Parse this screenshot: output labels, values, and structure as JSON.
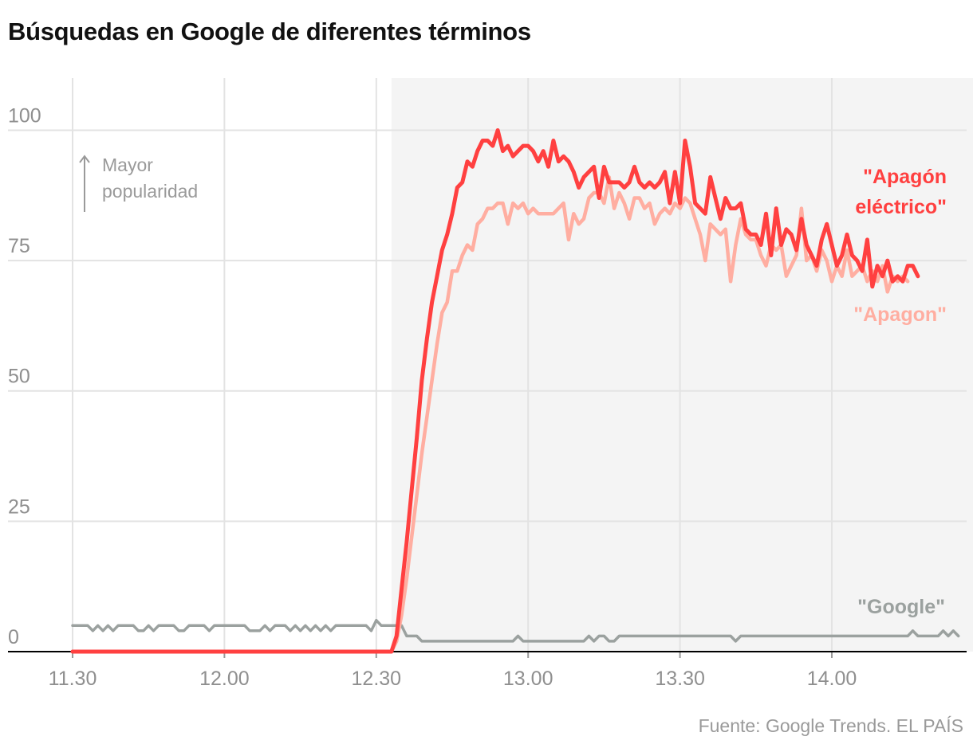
{
  "title": "Búsquedas en Google de diferentes términos",
  "source": "Fuente: Google Trends. EL PAÍS",
  "annotation": {
    "arrow": "↑",
    "line1": "Mayor",
    "line2": "popularidad"
  },
  "colors": {
    "apagon_electrico": "#ff4040",
    "apagon": "#ffaea1",
    "google": "#9ba19f",
    "shade": "#f4f4f4",
    "grid": "#e3e3e3",
    "axis": "#000000"
  },
  "chart_data": {
    "type": "line",
    "title": "Búsquedas en Google de diferentes términos",
    "x_unit": "hora (hh.mm)",
    "xlim": [
      "11:30",
      "14:46"
    ],
    "ylim": [
      0,
      110
    ],
    "x_ticks": [
      "11.30",
      "12.00",
      "12.30",
      "13.00",
      "13.30",
      "14.00"
    ],
    "y_ticks": [
      0,
      25,
      50,
      75,
      100
    ],
    "grid": true,
    "highlight_region": {
      "from": "12:33",
      "to": "14:46"
    },
    "series": [
      {
        "name": "\"Google\"",
        "label_lines": [
          "\"Google\""
        ],
        "color": "#9ba19f",
        "points": [
          [
            "11:30",
            5
          ],
          [
            "11:33",
            5
          ],
          [
            "11:34",
            4
          ],
          [
            "11:35",
            5
          ],
          [
            "11:36",
            4
          ],
          [
            "11:37",
            5
          ],
          [
            "11:38",
            4
          ],
          [
            "11:39",
            5
          ],
          [
            "11:42",
            5
          ],
          [
            "11:43",
            4
          ],
          [
            "11:44",
            4
          ],
          [
            "11:45",
            5
          ],
          [
            "11:46",
            4
          ],
          [
            "11:47",
            5
          ],
          [
            "11:50",
            5
          ],
          [
            "11:51",
            4
          ],
          [
            "11:52",
            4
          ],
          [
            "11:53",
            5
          ],
          [
            "11:56",
            5
          ],
          [
            "11:57",
            4
          ],
          [
            "11:58",
            5
          ],
          [
            "12:04",
            5
          ],
          [
            "12:05",
            4
          ],
          [
            "12:07",
            4
          ],
          [
            "12:08",
            5
          ],
          [
            "12:09",
            4
          ],
          [
            "12:10",
            5
          ],
          [
            "12:12",
            5
          ],
          [
            "12:13",
            4
          ],
          [
            "12:14",
            5
          ],
          [
            "12:15",
            4
          ],
          [
            "12:16",
            5
          ],
          [
            "12:17",
            4
          ],
          [
            "12:18",
            5
          ],
          [
            "12:19",
            4
          ],
          [
            "12:20",
            5
          ],
          [
            "12:21",
            4
          ],
          [
            "12:22",
            5
          ],
          [
            "12:28",
            5
          ],
          [
            "12:29",
            4
          ],
          [
            "12:30",
            6
          ],
          [
            "12:31",
            5
          ],
          [
            "12:35",
            5
          ],
          [
            "12:36",
            3
          ],
          [
            "12:38",
            3
          ],
          [
            "12:39",
            2
          ],
          [
            "12:57",
            2
          ],
          [
            "12:58",
            3
          ],
          [
            "12:59",
            2
          ],
          [
            "13:11",
            2
          ],
          [
            "13:12",
            3
          ],
          [
            "13:13",
            2
          ],
          [
            "13:14",
            3
          ],
          [
            "13:15",
            3
          ],
          [
            "13:16",
            2
          ],
          [
            "13:17",
            2
          ],
          [
            "13:18",
            3
          ],
          [
            "13:40",
            3
          ],
          [
            "13:41",
            2
          ],
          [
            "13:42",
            3
          ],
          [
            "14:15",
            3
          ],
          [
            "14:16",
            4
          ],
          [
            "14:17",
            3
          ],
          [
            "14:21",
            3
          ],
          [
            "14:22",
            4
          ],
          [
            "14:23",
            3
          ],
          [
            "14:24",
            4
          ],
          [
            "14:25",
            3
          ]
        ]
      },
      {
        "name": "\"Apagon\"",
        "label_lines": [
          "\"Apagon\""
        ],
        "color": "#ffaea1",
        "points": [
          [
            "11:30",
            0
          ],
          [
            "12:33",
            0
          ],
          [
            "12:34",
            2
          ],
          [
            "12:35",
            7
          ],
          [
            "12:36",
            14
          ],
          [
            "12:37",
            22
          ],
          [
            "12:38",
            30
          ],
          [
            "12:39",
            38
          ],
          [
            "12:40",
            45
          ],
          [
            "12:41",
            52
          ],
          [
            "12:42",
            59
          ],
          [
            "12:43",
            65
          ],
          [
            "12:44",
            67
          ],
          [
            "12:45",
            73
          ],
          [
            "12:46",
            73
          ],
          [
            "12:47",
            76
          ],
          [
            "12:48",
            78
          ],
          [
            "12:49",
            77
          ],
          [
            "12:50",
            82
          ],
          [
            "12:51",
            83
          ],
          [
            "12:52",
            85
          ],
          [
            "12:53",
            85
          ],
          [
            "12:54",
            86
          ],
          [
            "12:55",
            86
          ],
          [
            "12:56",
            82
          ],
          [
            "12:57",
            86
          ],
          [
            "12:58",
            85
          ],
          [
            "12:59",
            86
          ],
          [
            "13:00",
            84
          ],
          [
            "13:01",
            85
          ],
          [
            "13:02",
            84
          ],
          [
            "13:03",
            84
          ],
          [
            "13:04",
            84
          ],
          [
            "13:05",
            84
          ],
          [
            "13:06",
            85
          ],
          [
            "13:07",
            86
          ],
          [
            "13:08",
            79
          ],
          [
            "13:09",
            84
          ],
          [
            "13:10",
            82
          ],
          [
            "13:11",
            83
          ],
          [
            "13:12",
            87
          ],
          [
            "13:13",
            88
          ],
          [
            "13:14",
            88
          ],
          [
            "13:15",
            86
          ],
          [
            "13:16",
            91
          ],
          [
            "13:17",
            85
          ],
          [
            "13:18",
            88
          ],
          [
            "13:19",
            86
          ],
          [
            "13:20",
            83
          ],
          [
            "13:21",
            87
          ],
          [
            "13:22",
            87
          ],
          [
            "13:23",
            85
          ],
          [
            "13:24",
            86
          ],
          [
            "13:25",
            82
          ],
          [
            "13:26",
            84
          ],
          [
            "13:27",
            85
          ],
          [
            "13:28",
            84
          ],
          [
            "13:29",
            86
          ],
          [
            "13:30",
            85
          ],
          [
            "13:31",
            87
          ],
          [
            "13:32",
            86
          ],
          [
            "13:33",
            83
          ],
          [
            "13:34",
            80
          ],
          [
            "13:35",
            75
          ],
          [
            "13:36",
            82
          ],
          [
            "13:37",
            81
          ],
          [
            "13:38",
            80
          ],
          [
            "13:39",
            81
          ],
          [
            "13:40",
            71
          ],
          [
            "13:41",
            78
          ],
          [
            "13:42",
            83
          ],
          [
            "13:43",
            80
          ],
          [
            "13:44",
            79
          ],
          [
            "13:45",
            79
          ],
          [
            "13:46",
            76
          ],
          [
            "13:47",
            74
          ],
          [
            "13:48",
            78
          ],
          [
            "13:49",
            77
          ],
          [
            "13:50",
            78
          ],
          [
            "13:51",
            72
          ],
          [
            "13:52",
            74
          ],
          [
            "13:53",
            76
          ],
          [
            "13:54",
            85
          ],
          [
            "13:55",
            75
          ],
          [
            "13:56",
            76
          ],
          [
            "13:57",
            73
          ],
          [
            "13:58",
            77
          ],
          [
            "13:59",
            75
          ],
          [
            "14:00",
            71
          ],
          [
            "14:01",
            74
          ],
          [
            "14:02",
            72
          ],
          [
            "14:03",
            77
          ],
          [
            "14:04",
            72
          ],
          [
            "14:05",
            73
          ],
          [
            "14:06",
            74
          ],
          [
            "14:07",
            71
          ],
          [
            "14:08",
            73
          ],
          [
            "14:09",
            71
          ],
          [
            "14:10",
            74
          ],
          [
            "14:11",
            69
          ],
          [
            "14:12",
            72
          ],
          [
            "14:13",
            71
          ],
          [
            "14:14",
            72
          ],
          [
            "14:15",
            71
          ]
        ]
      },
      {
        "name": "\"Apagón eléctrico\"",
        "label_lines": [
          "\"Apagón",
          "eléctrico\""
        ],
        "color": "#ff4040",
        "points": [
          [
            "11:30",
            0
          ],
          [
            "12:33",
            0
          ],
          [
            "12:34",
            3
          ],
          [
            "12:35",
            12
          ],
          [
            "12:36",
            21
          ],
          [
            "12:37",
            31
          ],
          [
            "12:38",
            41
          ],
          [
            "12:39",
            52
          ],
          [
            "12:40",
            60
          ],
          [
            "12:41",
            67
          ],
          [
            "12:42",
            72
          ],
          [
            "12:43",
            77
          ],
          [
            "12:44",
            80
          ],
          [
            "12:45",
            84
          ],
          [
            "12:46",
            89
          ],
          [
            "12:47",
            90
          ],
          [
            "12:48",
            94
          ],
          [
            "12:49",
            93
          ],
          [
            "12:50",
            96
          ],
          [
            "12:51",
            98
          ],
          [
            "12:52",
            98
          ],
          [
            "12:53",
            97
          ],
          [
            "12:54",
            100
          ],
          [
            "12:55",
            96
          ],
          [
            "12:56",
            97
          ],
          [
            "12:57",
            95
          ],
          [
            "12:58",
            96
          ],
          [
            "12:59",
            97
          ],
          [
            "13:00",
            97
          ],
          [
            "13:01",
            96
          ],
          [
            "13:02",
            94
          ],
          [
            "13:03",
            96
          ],
          [
            "13:04",
            93
          ],
          [
            "13:05",
            98
          ],
          [
            "13:06",
            94
          ],
          [
            "13:07",
            95
          ],
          [
            "13:08",
            94
          ],
          [
            "13:09",
            92
          ],
          [
            "13:10",
            89
          ],
          [
            "13:11",
            91
          ],
          [
            "13:12",
            92
          ],
          [
            "13:13",
            93
          ],
          [
            "13:14",
            87
          ],
          [
            "13:15",
            93
          ],
          [
            "13:16",
            90
          ],
          [
            "13:17",
            90
          ],
          [
            "13:18",
            90
          ],
          [
            "13:19",
            89
          ],
          [
            "13:20",
            90
          ],
          [
            "13:21",
            93
          ],
          [
            "13:22",
            90
          ],
          [
            "13:23",
            89
          ],
          [
            "13:24",
            90
          ],
          [
            "13:25",
            89
          ],
          [
            "13:26",
            90
          ],
          [
            "13:27",
            92
          ],
          [
            "13:28",
            86
          ],
          [
            "13:29",
            92
          ],
          [
            "13:30",
            86
          ],
          [
            "13:31",
            98
          ],
          [
            "13:32",
            93
          ],
          [
            "13:33",
            86
          ],
          [
            "13:34",
            85
          ],
          [
            "13:35",
            84
          ],
          [
            "13:36",
            91
          ],
          [
            "13:37",
            87
          ],
          [
            "13:38",
            83
          ],
          [
            "13:39",
            87
          ],
          [
            "13:40",
            85
          ],
          [
            "13:41",
            85
          ],
          [
            "13:42",
            86
          ],
          [
            "13:43",
            81
          ],
          [
            "13:44",
            80
          ],
          [
            "13:45",
            80
          ],
          [
            "13:46",
            78
          ],
          [
            "13:47",
            84
          ],
          [
            "13:48",
            76
          ],
          [
            "13:49",
            85
          ],
          [
            "13:50",
            78
          ],
          [
            "13:51",
            81
          ],
          [
            "13:52",
            80
          ],
          [
            "13:53",
            77
          ],
          [
            "13:54",
            83
          ],
          [
            "13:55",
            78
          ],
          [
            "13:56",
            76
          ],
          [
            "13:57",
            74
          ],
          [
            "13:58",
            79
          ],
          [
            "13:59",
            82
          ],
          [
            "14:00",
            78
          ],
          [
            "14:01",
            74
          ],
          [
            "14:02",
            76
          ],
          [
            "14:03",
            80
          ],
          [
            "14:04",
            76
          ],
          [
            "14:05",
            75
          ],
          [
            "14:06",
            73
          ],
          [
            "14:07",
            79
          ],
          [
            "14:08",
            70
          ],
          [
            "14:09",
            74
          ],
          [
            "14:10",
            72
          ],
          [
            "14:11",
            75
          ],
          [
            "14:12",
            71
          ],
          [
            "14:13",
            72
          ],
          [
            "14:14",
            71
          ],
          [
            "14:15",
            74
          ],
          [
            "14:16",
            74
          ],
          [
            "14:17",
            72
          ]
        ]
      }
    ]
  }
}
